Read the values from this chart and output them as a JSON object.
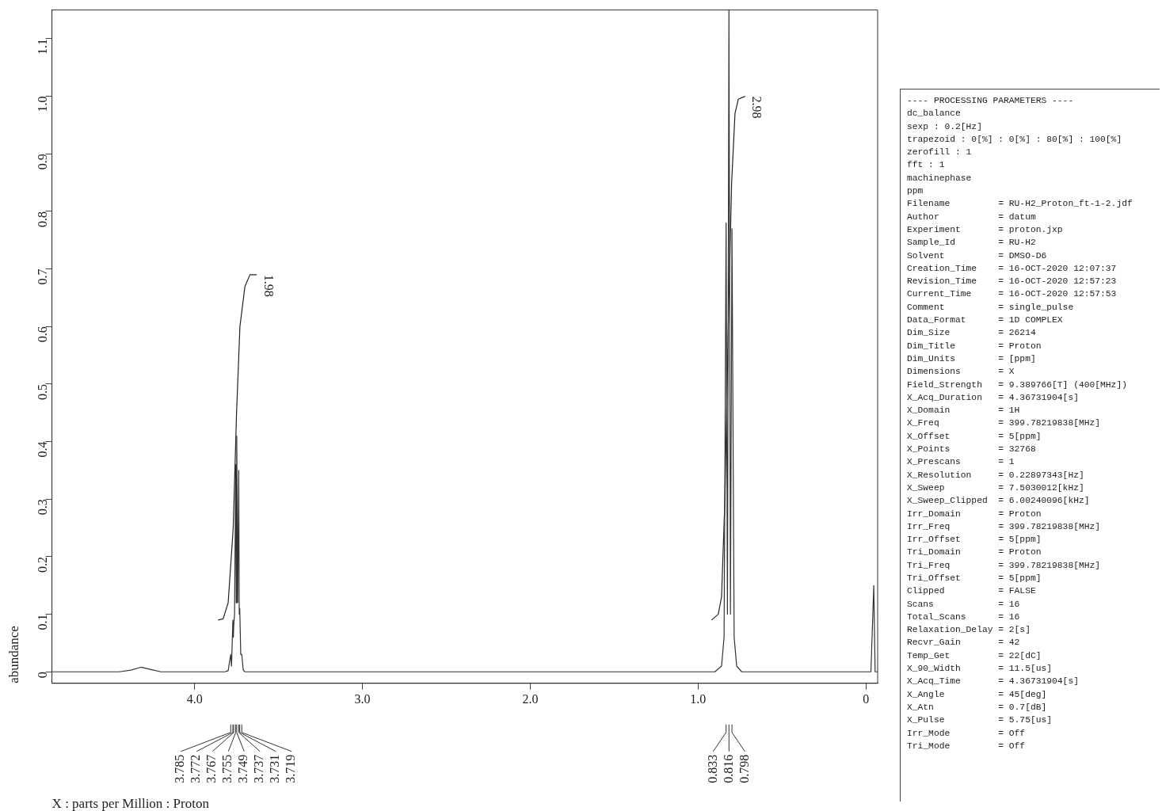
{
  "chart_data": {
    "type": "line",
    "ylabel": "abundance",
    "xlim": [
      4.85,
      -0.07
    ],
    "xticks": [
      {
        "value": 4,
        "label": "4.0"
      },
      {
        "value": 3,
        "label": "3.0"
      },
      {
        "value": 2,
        "label": "2.0"
      },
      {
        "value": 1,
        "label": "1.0"
      },
      0
    ],
    "ylim": [
      -0.02,
      1.15
    ],
    "yticks": [
      0,
      0.1,
      0.2,
      0.3,
      0.4,
      0.5,
      0.6,
      0.7,
      0.8,
      0.9,
      {
        "value": 1,
        "label": "1.0"
      },
      1.1
    ],
    "grid": false,
    "legend": false,
    "marker": "none",
    "line_style": "solid",
    "series": [
      {
        "color": "#333333",
        "x": [
          4.85,
          4.45,
          4.38,
          4.32,
          4.26,
          4.2,
          3.82,
          3.8,
          3.785,
          3.78,
          3.772,
          3.769,
          3.767,
          3.762,
          3.755,
          3.752,
          3.749,
          3.743,
          3.737,
          3.734,
          3.731,
          3.725,
          3.719,
          3.71,
          3.7,
          0.9,
          0.86,
          0.845,
          0.833,
          0.825,
          0.816,
          0.807,
          0.798,
          0.785,
          0.77,
          0.74,
          -0.03,
          -0.047,
          -0.055,
          -0.07
        ],
        "values": [
          0,
          0,
          0.003,
          0.008,
          0.004,
          0,
          0,
          0.002,
          0.03,
          0.01,
          0.09,
          0.06,
          0.08,
          0.1,
          0.36,
          0.12,
          0.41,
          0.12,
          0.35,
          0.1,
          0.11,
          0.03,
          0.03,
          0.003,
          0,
          0,
          0.01,
          0.06,
          0.78,
          0.1,
          1.15,
          0.1,
          0.77,
          0.06,
          0.01,
          0,
          0,
          0.15,
          0,
          0
        ]
      },
      {
        "color": "#222222",
        "x": [
          3.86,
          3.83,
          3.8,
          3.77,
          3.75,
          3.73,
          3.7,
          3.67,
          3.63
        ],
        "values": [
          0.09,
          0.092,
          0.12,
          0.25,
          0.45,
          0.6,
          0.67,
          0.69,
          0.69
        ]
      },
      {
        "color": "#222222",
        "x": [
          0.92,
          0.88,
          0.86,
          0.84,
          0.82,
          0.8,
          0.78,
          0.76,
          0.72
        ],
        "values": [
          0.09,
          0.1,
          0.13,
          0.3,
          0.6,
          0.85,
          0.97,
          0.995,
          1.0
        ]
      }
    ],
    "annotations": [
      {
        "text": "X : parts per Million : Proton"
      },
      {
        "text": "1.98",
        "x": 3.63,
        "y": 0.69
      },
      {
        "text": "2.98",
        "x": 0.72,
        "y": 1.0
      },
      {
        "text": "3.785",
        "x": 3.785
      },
      {
        "text": "3.772",
        "x": 3.772
      },
      {
        "text": "3.767",
        "x": 3.767
      },
      {
        "text": "3.755",
        "x": 3.755
      },
      {
        "text": "3.749",
        "x": 3.749
      },
      {
        "text": "3.737",
        "x": 3.737
      },
      {
        "text": "3.731",
        "x": 3.731
      },
      {
        "text": "3.719",
        "x": 3.719
      },
      {
        "text": "0.833",
        "x": 0.833
      },
      {
        "text": "0.816",
        "x": 0.816
      },
      {
        "text": "0.798",
        "x": 0.798
      },
      "---- PROCESSING PARAMETERS ----",
      "dc_balance",
      "sexp : 0.2[Hz]",
      "trapezoid : 0[%] : 0[%] : 80[%] : 100[%]",
      "zerofill : 1",
      "fft : 1",
      "machinephase",
      "ppm",
      "Filename         = RU-H2_Proton_ft-1-2.jdf",
      "Author           = datum",
      "Experiment       = proton.jxp",
      "Sample_Id        = RU-H2",
      "Solvent          = DMSO-D6",
      "Creation_Time    = 16-OCT-2020 12:07:37",
      "Revision_Time    = 16-OCT-2020 12:57:23",
      "Current_Time     = 16-OCT-2020 12:57:53",
      "Comment          = single_pulse",
      "Data_Format      = 1D COMPLEX",
      "Dim_Size         = 26214",
      "Dim_Title        = Proton",
      "Dim_Units        = [ppm]",
      "Dimensions       = X",
      "Field_Strength   = 9.389766[T] (400[MHz])",
      "X_Acq_Duration   = 4.36731904[s]",
      "X_Domain         = 1H",
      "X_Freq           = 399.78219838[MHz]",
      "X_Offset         = 5[ppm]",
      "X_Points         = 32768",
      "X_Prescans       = 1",
      "X_Resolution     = 0.22897343[Hz]",
      "X_Sweep          = 7.5030012[kHz]",
      "X_Sweep_Clipped  = 6.00240096[kHz]",
      "Irr_Domain       = Proton",
      "Irr_Freq         = 399.78219838[MHz]",
      "Irr_Offset       = 5[ppm]",
      "Tri_Domain       = Proton",
      "Tri_Freq         = 399.78219838[MHz]",
      "Tri_Offset       = 5[ppm]",
      "Clipped          = FALSE",
      "Scans            = 16",
      "Total_Scans      = 16",
      "Relaxation_Delay = 2[s]",
      "Recvr_Gain       = 42",
      "Temp_Get         = 22[dC]",
      "X_90_Width       = 11.5[us]",
      "X_Acq_Time       = 4.36731904[s]",
      "X_Angle          = 45[deg]",
      "X_Atn            = 0.7[dB]",
      "X_Pulse          = 5.75[us]",
      "Irr_Mode         = Off",
      "Tri_Mode         = Off"
    ]
  }
}
